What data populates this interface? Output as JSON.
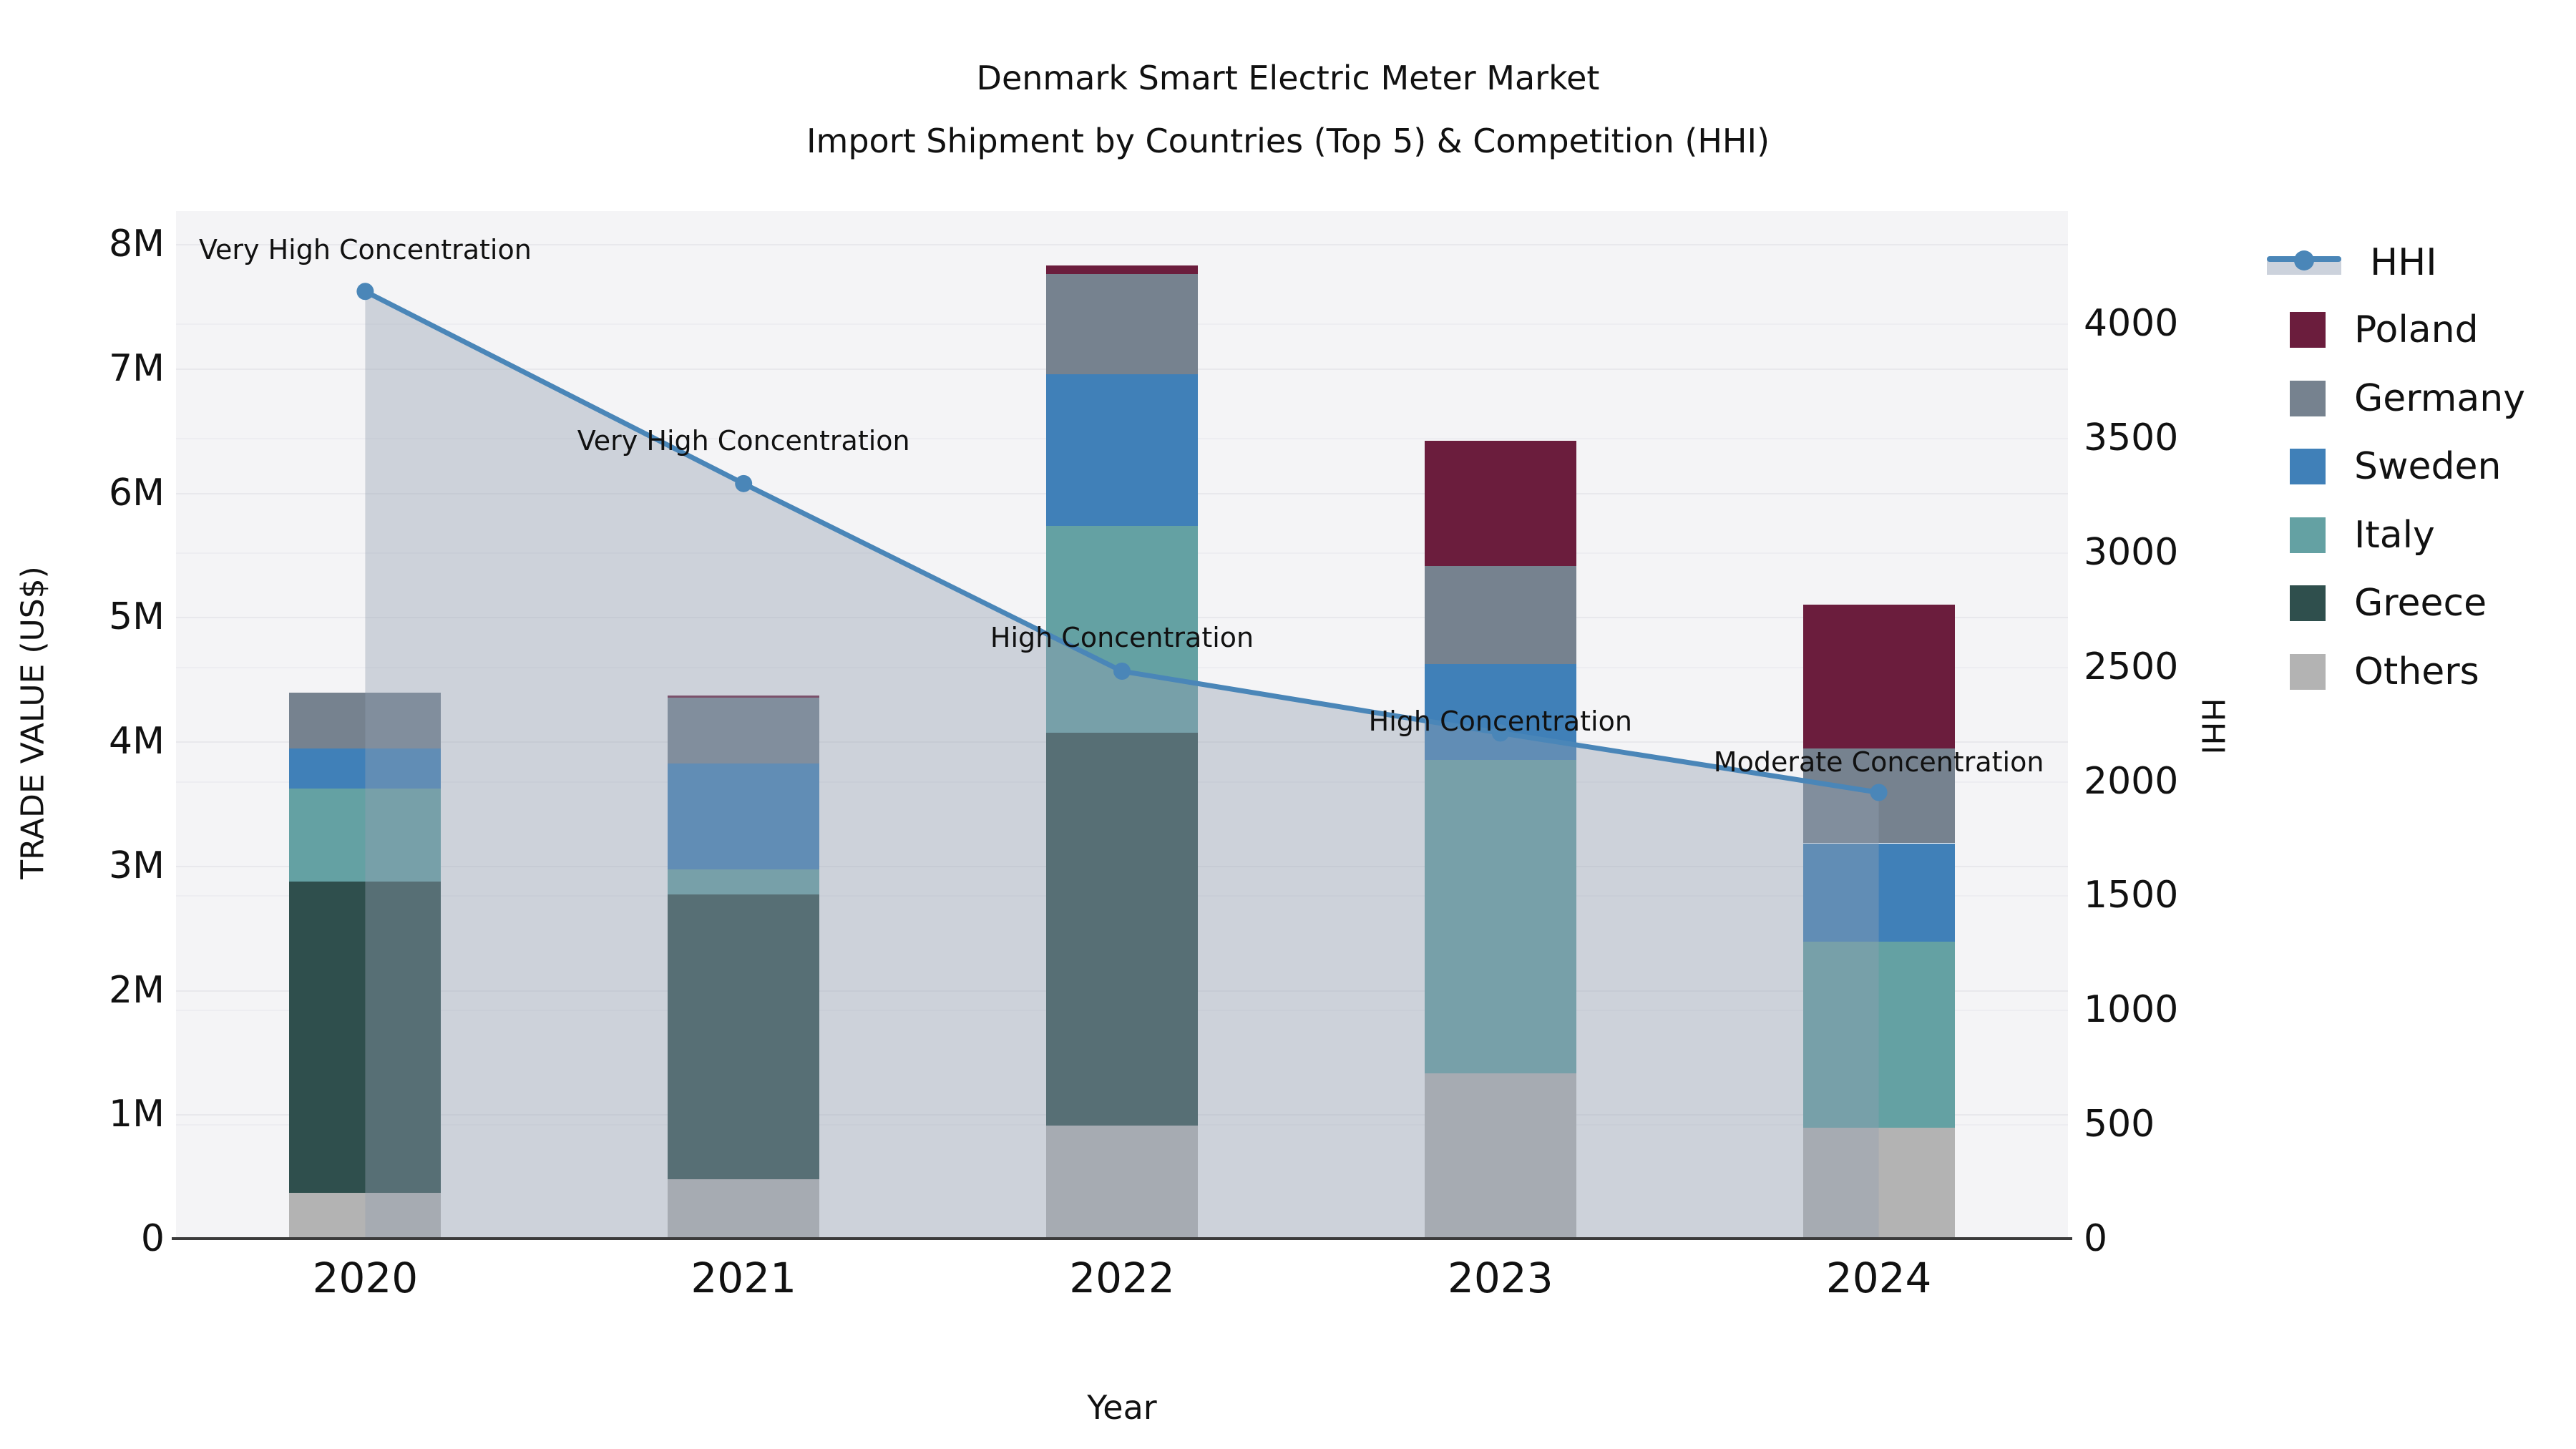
{
  "title": {
    "line1": "Denmark Smart Electric Meter Market",
    "line2": "Import Shipment by Countries (Top 5) & Competition (HHI)"
  },
  "axes": {
    "x_title": "Year",
    "y_left_title": "TRADE VALUE (US$)",
    "y_right_title": "HHI",
    "y_left_tick_labels": [
      "0",
      "1M",
      "2M",
      "3M",
      "4M",
      "5M",
      "6M",
      "7M",
      "8M"
    ],
    "y_right_tick_labels": [
      "0",
      "500",
      "1000",
      "1500",
      "2000",
      "2500",
      "3000",
      "3500",
      "4000"
    ]
  },
  "legend": {
    "hhi_label": "HHI",
    "items": [
      {
        "label": "Poland",
        "color": "#6b1d3d"
      },
      {
        "label": "Germany",
        "color": "#76828f"
      },
      {
        "label": "Sweden",
        "color": "#4080b8"
      },
      {
        "label": "Italy",
        "color": "#64a1a3"
      },
      {
        "label": "Greece",
        "color": "#2f4f4d"
      },
      {
        "label": "Others",
        "color": "#b3b3b3"
      }
    ]
  },
  "chart_data": {
    "type": "bar+line",
    "categories": [
      "2020",
      "2021",
      "2022",
      "2023",
      "2024"
    ],
    "bar_unit": "millions US$",
    "series": [
      {
        "name": "Poland",
        "color": "#6b1d3d",
        "values": [
          0,
          0.02,
          0.07,
          1.01,
          1.16
        ]
      },
      {
        "name": "Germany",
        "color": "#76828f",
        "values": [
          0.45,
          0.53,
          0.81,
          0.79,
          0.76
        ]
      },
      {
        "name": "Sweden",
        "color": "#4080b8",
        "values": [
          0.32,
          0.85,
          1.22,
          0.77,
          0.79
        ]
      },
      {
        "name": "Italy",
        "color": "#64a1a3",
        "values": [
          0.75,
          0.2,
          1.66,
          2.52,
          1.5
        ]
      },
      {
        "name": "Greece",
        "color": "#2f4f4d",
        "values": [
          2.5,
          2.29,
          3.16,
          0,
          0
        ]
      },
      {
        "name": "Others",
        "color": "#b3b3b3",
        "values": [
          0.37,
          0.48,
          0.91,
          1.33,
          0.89
        ]
      }
    ],
    "stack_order_bottom_to_top": [
      "Others",
      "Greece",
      "Italy",
      "Sweden",
      "Germany",
      "Poland"
    ],
    "line_series": {
      "name": "HHI",
      "color": "#4a86b8",
      "area_fill": "rgba(147,159,178,0.40)",
      "values": [
        4140,
        3300,
        2480,
        2210,
        1950
      ]
    },
    "annotations": [
      {
        "category": "2020",
        "text": "Very High Concentration"
      },
      {
        "category": "2021",
        "text": "Very High Concentration"
      },
      {
        "category": "2022",
        "text": "High Concentration"
      },
      {
        "category": "2023",
        "text": "High Concentration"
      },
      {
        "category": "2024",
        "text": "Moderate Concentration"
      }
    ],
    "y_left_axis": {
      "label": "TRADE VALUE (US$)",
      "min": 0,
      "max": 8000000,
      "tick_step": 1000000
    },
    "y_right_axis": {
      "label": "HHI",
      "min": 0,
      "max": 4000,
      "tick_step": 500
    },
    "x_axis": {
      "label": "Year"
    },
    "grid": true,
    "legend_position": "right-top"
  }
}
